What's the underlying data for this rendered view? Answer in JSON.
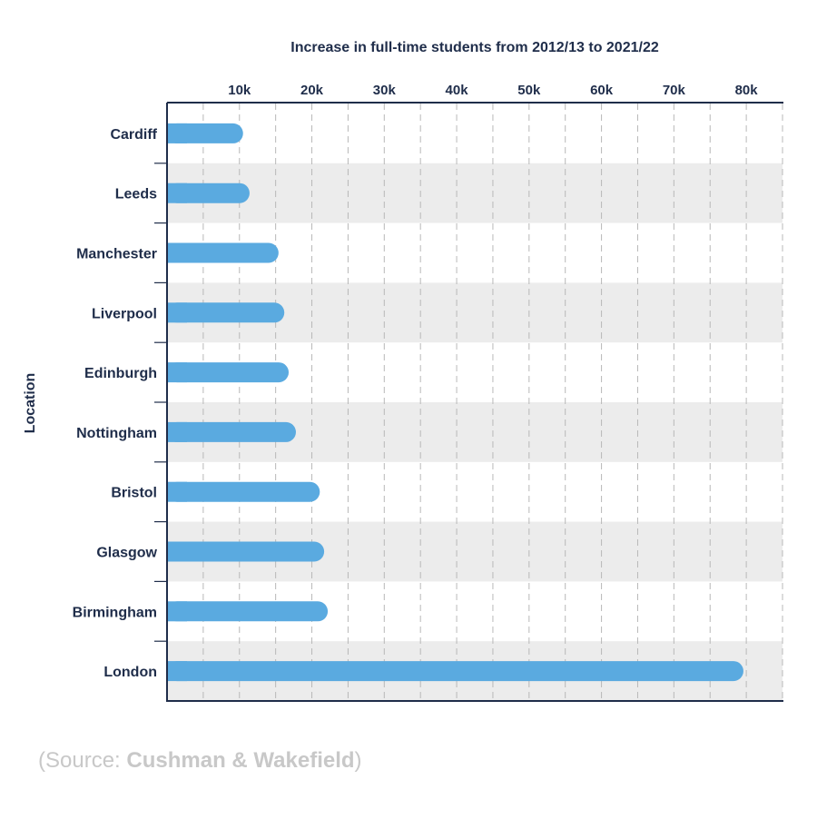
{
  "chart_data": {
    "type": "bar",
    "orientation": "horizontal",
    "title": "Increase in full-time students from 2012/13 to 2021/22",
    "ylabel": "Location",
    "xlabel": "",
    "x_ticks": [
      10000,
      20000,
      30000,
      40000,
      50000,
      60000,
      70000,
      80000
    ],
    "x_tick_labels": [
      "10k",
      "20k",
      "30k",
      "40k",
      "50k",
      "60k",
      "70k",
      "80k"
    ],
    "xlim": [
      0,
      85000
    ],
    "grid": true,
    "categories": [
      "Cardiff",
      "Leeds",
      "Manchester",
      "Liverpool",
      "Edinburgh",
      "Nottingham",
      "Bristol",
      "Glasgow",
      "Birmingham",
      "London"
    ],
    "values": [
      10500,
      11400,
      15400,
      16200,
      16800,
      17800,
      21100,
      21700,
      22200,
      79600
    ],
    "bar_color": "#5aaae0",
    "band_color": "#ececec",
    "axis_color": "#1f2d4a"
  },
  "source": {
    "open": "(",
    "prefix": "Source: ",
    "name": "Cushman & Wakefield",
    "close": ")"
  }
}
